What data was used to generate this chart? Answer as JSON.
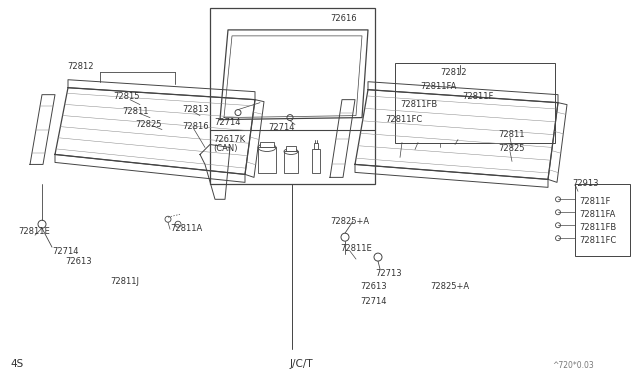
{
  "bg_color": "#ffffff",
  "watermark": "^720*0.03",
  "label_4s": "4S",
  "label_jct": "J/C/T",
  "line_color": "#444444",
  "text_color": "#333333",
  "font_size": 7.0,
  "font_size_small": 6.0
}
